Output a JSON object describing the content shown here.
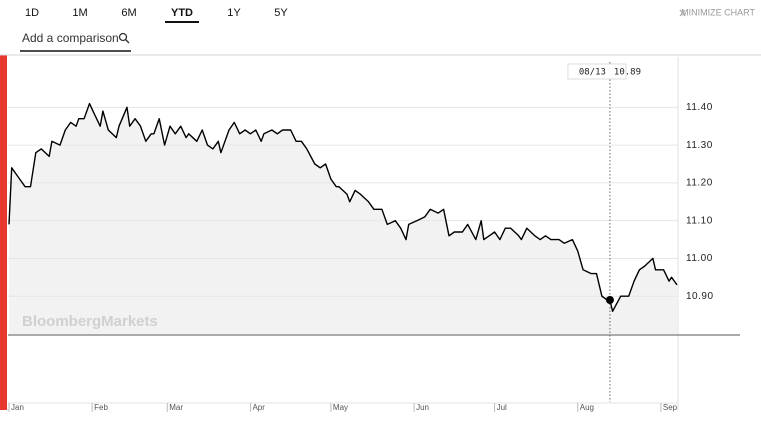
{
  "controls": {
    "ranges": [
      "1D",
      "1M",
      "6M",
      "YTD",
      "1Y",
      "5Y"
    ],
    "selected_range": "YTD",
    "minimize": "MINIMIZE CHART",
    "comparison_placeholder": "Add a comparison"
  },
  "chart_data": {
    "type": "line",
    "watermark": "BloombergMarkets",
    "color": "#000000",
    "area_color": "#f2f2f2",
    "xlim": [
      0,
      249
    ],
    "xticks": [
      {
        "value": 0,
        "label": "Jan"
      },
      {
        "value": 31,
        "label": "Feb"
      },
      {
        "value": 59,
        "label": "Mar"
      },
      {
        "value": 90,
        "label": "Apr"
      },
      {
        "value": 120,
        "label": "May"
      },
      {
        "value": 151,
        "label": "Jun"
      },
      {
        "value": 181,
        "label": "Jul"
      },
      {
        "value": 212,
        "label": "Aug"
      },
      {
        "value": 243,
        "label": "Sep"
      }
    ],
    "ylim": [
      10.8,
      11.52
    ],
    "yticks": [
      {
        "value": 10.9,
        "label": "10.90"
      },
      {
        "value": 11,
        "label": "11.00"
      },
      {
        "value": 11.1,
        "label": "11.10"
      },
      {
        "value": 11.2,
        "label": "11.20"
      },
      {
        "value": 11.3,
        "label": "11.30"
      },
      {
        "value": 11.4,
        "label": "11.40"
      }
    ],
    "grid": true,
    "crosshair": {
      "x": 224,
      "label": "08/13",
      "value": 10.89
    },
    "series": [
      {
        "x": [
          0,
          1,
          2,
          4,
          6,
          8,
          10,
          12,
          15,
          16,
          19,
          21,
          23,
          25,
          26,
          28,
          30,
          32,
          34,
          35,
          37,
          40,
          41,
          44,
          45,
          47,
          49,
          51,
          53,
          54,
          56,
          58,
          60,
          62,
          64,
          66,
          67,
          70,
          72,
          74,
          76,
          78,
          79,
          82,
          84,
          86,
          88,
          90,
          92,
          94,
          95,
          98,
          100,
          102,
          105,
          107,
          109,
          111,
          114,
          116,
          118,
          120,
          122,
          123,
          126,
          127,
          129,
          131,
          134,
          136,
          139,
          141,
          144,
          146,
          148,
          149,
          152,
          155,
          157,
          160,
          162,
          164,
          166,
          169,
          171,
          174,
          176,
          177,
          179,
          181,
          183,
          185,
          187,
          190,
          191,
          193,
          196,
          198,
          200,
          202,
          205,
          207,
          210,
          212,
          214,
          217,
          219,
          221,
          223,
          224,
          225,
          228,
          231,
          233,
          235,
          237,
          240,
          241,
          244,
          246,
          247,
          249
        ],
        "values": [
          11.09,
          11.24,
          11.23,
          11.21,
          11.19,
          11.19,
          11.28,
          11.29,
          11.27,
          11.31,
          11.3,
          11.34,
          11.36,
          11.35,
          11.37,
          11.37,
          11.41,
          11.38,
          11.35,
          11.39,
          11.34,
          11.32,
          11.35,
          11.4,
          11.35,
          11.37,
          11.35,
          11.31,
          11.33,
          11.33,
          11.37,
          11.3,
          11.35,
          11.33,
          11.35,
          11.32,
          11.33,
          11.31,
          11.34,
          11.3,
          11.29,
          11.31,
          11.28,
          11.34,
          11.36,
          11.33,
          11.34,
          11.33,
          11.34,
          11.31,
          11.33,
          11.34,
          11.33,
          11.34,
          11.34,
          11.31,
          11.31,
          11.29,
          11.25,
          11.24,
          11.25,
          11.21,
          11.19,
          11.19,
          11.17,
          11.15,
          11.18,
          11.17,
          11.15,
          11.13,
          11.13,
          11.09,
          11.1,
          11.08,
          11.05,
          11.09,
          11.1,
          11.11,
          11.13,
          11.12,
          11.13,
          11.06,
          11.07,
          11.07,
          11.09,
          11.05,
          11.1,
          11.05,
          11.06,
          11.07,
          11.05,
          11.08,
          11.08,
          11.06,
          11.05,
          11.08,
          11.06,
          11.05,
          11.06,
          11.05,
          11.05,
          11.04,
          11.05,
          11.02,
          10.97,
          10.96,
          10.96,
          10.9,
          10.89,
          10.89,
          10.86,
          10.9,
          10.9,
          10.94,
          10.97,
          10.98,
          11.0,
          10.97,
          10.97,
          10.94,
          10.95,
          10.93
        ]
      }
    ]
  }
}
